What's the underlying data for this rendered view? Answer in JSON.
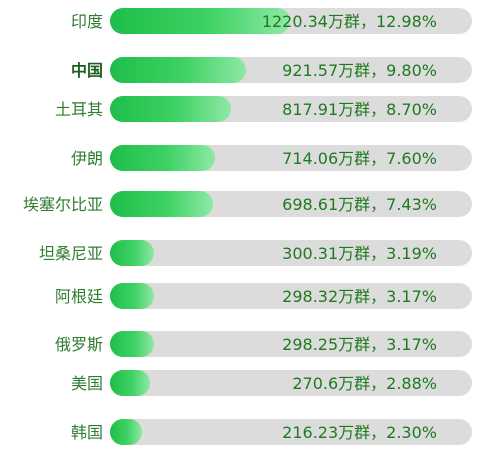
{
  "chart_data": {
    "type": "bar",
    "orientation": "horizontal",
    "categories": [
      "印度",
      "中国",
      "土耳其",
      "伊朗",
      "埃塞尔比亚",
      "坦桑尼亚",
      "阿根廷",
      "俄罗斯",
      "美国",
      "韩国"
    ],
    "values": [
      1220.34,
      921.57,
      817.91,
      714.06,
      698.61,
      300.31,
      298.32,
      298.25,
      270.6,
      216.23
    ],
    "percentages": [
      12.98,
      9.8,
      8.7,
      7.6,
      7.43,
      3.19,
      3.17,
      3.17,
      2.88,
      2.3
    ],
    "data_labels": [
      "1220.34万群，12.98%",
      "921.57万群，9.80%",
      "817.91万群，8.70%",
      "714.06万群，7.60%",
      "698.61万群，7.43%",
      "300.31万群，3.19%",
      "298.32万群，3.17%",
      "298.25万群，3.17%",
      "270.6万群，2.88%",
      "216.23万群，2.30%"
    ],
    "xlim": [
      0,
      100
    ],
    "grid": false,
    "colors": {
      "bar_start": "#1ebe4a",
      "bar_end": "#8fe8a6",
      "track": "#dcdcdc",
      "label_text": "#2f7d2f",
      "value_text": "#1f7a1f"
    }
  }
}
